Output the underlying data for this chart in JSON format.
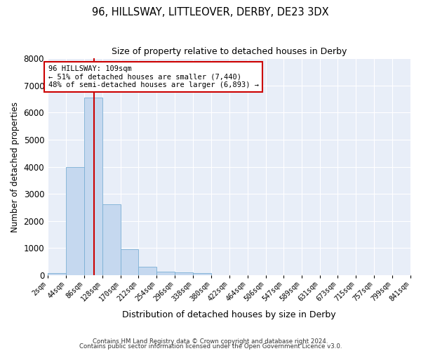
{
  "title1": "96, HILLSWAY, LITTLEOVER, DERBY, DE23 3DX",
  "title2": "Size of property relative to detached houses in Derby",
  "xlabel": "Distribution of detached houses by size in Derby",
  "ylabel": "Number of detached properties",
  "bar_color": "#c5d8ef",
  "bar_edge_color": "#7aafd4",
  "bg_color": "#e8eef8",
  "grid_color": "#ffffff",
  "annotation_box_color": "#cc0000",
  "vline_color": "#cc0000",
  "footer1": "Contains HM Land Registry data © Crown copyright and database right 2024.",
  "footer2": "Contains public sector information licensed under the Open Government Licence v3.0.",
  "annotation_line1": "96 HILLSWAY: 109sqm",
  "annotation_line2": "← 51% of detached houses are smaller (7,440)",
  "annotation_line3": "48% of semi-detached houses are larger (6,893) →",
  "vline_position": 109,
  "bin_edges": [
    2,
    44,
    86,
    128,
    170,
    212,
    254,
    296,
    338,
    380,
    422,
    464,
    506,
    547,
    589,
    631,
    673,
    715,
    757,
    799,
    841
  ],
  "bar_heights": [
    75,
    3980,
    6560,
    2620,
    960,
    310,
    120,
    110,
    80,
    0,
    0,
    0,
    0,
    0,
    0,
    0,
    0,
    0,
    0,
    0
  ],
  "ylim": [
    0,
    8000
  ],
  "yticks": [
    0,
    1000,
    2000,
    3000,
    4000,
    5000,
    6000,
    7000,
    8000
  ]
}
